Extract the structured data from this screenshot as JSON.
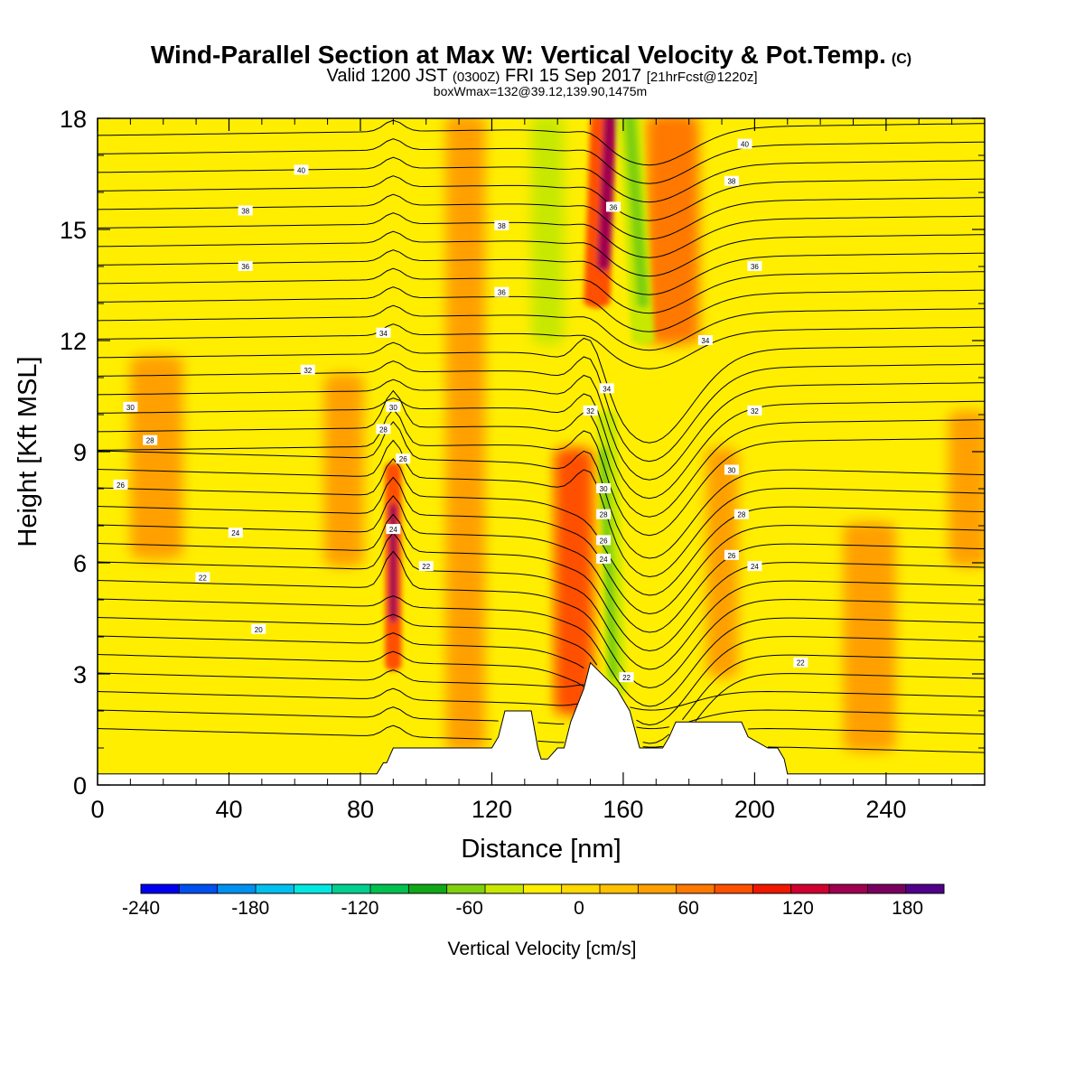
{
  "title": {
    "main": "Wind-Parallel Section at Max W: Vertical Velocity & Pot.Temp.",
    "main_badge": "(C)",
    "valid_prefix": "Valid 1200 JST",
    "valid_zulu": "(0300Z)",
    "valid_date": "FRI 15 Sep 2017",
    "valid_fcst": "[21hrFcst@1220z]",
    "boxinfo": "boxWmax=132@39.12,139.90,1475m"
  },
  "chart_data": {
    "type": "heatmap",
    "xlabel": "Distance [nm]",
    "ylabel": "Height [Kft MSL]",
    "xlim": [
      0,
      270
    ],
    "ylim": [
      0,
      18
    ],
    "xticks": [
      0,
      40,
      80,
      120,
      160,
      200,
      240
    ],
    "yticks": [
      0,
      3,
      6,
      9,
      12,
      15,
      18
    ],
    "colorbar": {
      "title": "Vertical Velocity [cm/s]",
      "min": -240,
      "max": 200,
      "step": 20,
      "ticks": [
        -240,
        -180,
        -120,
        -60,
        0,
        60,
        120,
        180
      ],
      "colors": [
        "#0000f0",
        "#0050f0",
        "#0090f0",
        "#00c0f0",
        "#00e8e0",
        "#00d090",
        "#00c050",
        "#10a818",
        "#80d010",
        "#c8e800",
        "#ffee00",
        "#ffd800",
        "#ffc000",
        "#ffa000",
        "#ff7800",
        "#ff5000",
        "#f01800",
        "#d00030",
        "#a00050",
        "#7a0060",
        "#50008a"
      ]
    },
    "vertical_velocity_features": [
      {
        "type": "updraft",
        "x_nm": 90,
        "height_kft": [
          3,
          8.5
        ],
        "peak_cm_s": 120
      },
      {
        "type": "updraft",
        "x_nm": 154,
        "height_kft": [
          13,
          18
        ],
        "peak_cm_s": 140
      },
      {
        "type": "updraft",
        "x_nm": 145,
        "height_kft": [
          2,
          8
        ],
        "peak_cm_s": 60
      },
      {
        "type": "downdraft",
        "x_nm": 157,
        "height_kft": [
          2.5,
          10
        ],
        "peak_cm_s": -80
      },
      {
        "type": "downdraft",
        "x_nm": 166,
        "height_kft": [
          12,
          18
        ],
        "peak_cm_s": -80
      },
      {
        "type": "downdraft",
        "x_nm": 135,
        "height_kft": [
          12,
          18
        ],
        "peak_cm_s": -50
      }
    ],
    "terrain_profile": {
      "x_nm": [
        0,
        85,
        87,
        88,
        90,
        120,
        122,
        124,
        132,
        134,
        135,
        137,
        140,
        142,
        144,
        148,
        150,
        158,
        162,
        165,
        172,
        174,
        176,
        196,
        198,
        204,
        206,
        207,
        209,
        210,
        212,
        270
      ],
      "height_kft": [
        0.3,
        0.3,
        0.6,
        0.6,
        1.0,
        1.0,
        1.3,
        2.0,
        2.0,
        1.0,
        0.7,
        0.7,
        1.0,
        1.0,
        1.7,
        2.6,
        3.3,
        2.6,
        2.0,
        1.0,
        1.0,
        1.3,
        1.7,
        1.7,
        1.3,
        1.0,
        1.0,
        1.0,
        0.7,
        0.3,
        0.3,
        0.3
      ]
    },
    "potential_temperature_contours_c": [
      20,
      22,
      24,
      26,
      28,
      30,
      32,
      34,
      36,
      38,
      40
    ],
    "contour_labels": [
      {
        "value": "40",
        "x": 62,
        "y": 16.6
      },
      {
        "value": "38",
        "x": 45,
        "y": 15.5
      },
      {
        "value": "36",
        "x": 45,
        "y": 14.0
      },
      {
        "value": "34",
        "x": 87,
        "y": 12.2
      },
      {
        "value": "32",
        "x": 64,
        "y": 11.2
      },
      {
        "value": "30",
        "x": 10,
        "y": 10.2
      },
      {
        "value": "28",
        "x": 16,
        "y": 9.3
      },
      {
        "value": "26",
        "x": 7,
        "y": 8.1
      },
      {
        "value": "24",
        "x": 42,
        "y": 6.8
      },
      {
        "value": "22",
        "x": 32,
        "y": 5.6
      },
      {
        "value": "20",
        "x": 49,
        "y": 4.2
      },
      {
        "value": "30",
        "x": 90,
        "y": 10.2
      },
      {
        "value": "28",
        "x": 87,
        "y": 9.6
      },
      {
        "value": "26",
        "x": 93,
        "y": 8.8
      },
      {
        "value": "24",
        "x": 90,
        "y": 6.9
      },
      {
        "value": "22",
        "x": 100,
        "y": 5.9
      },
      {
        "value": "38",
        "x": 123,
        "y": 15.1
      },
      {
        "value": "36",
        "x": 123,
        "y": 13.3
      },
      {
        "value": "36",
        "x": 157,
        "y": 15.6
      },
      {
        "value": "34",
        "x": 155,
        "y": 10.7
      },
      {
        "value": "32",
        "x": 150,
        "y": 10.1
      },
      {
        "value": "30",
        "x": 154,
        "y": 8.0
      },
      {
        "value": "28",
        "x": 154,
        "y": 7.3
      },
      {
        "value": "26",
        "x": 154,
        "y": 6.6
      },
      {
        "value": "24",
        "x": 154,
        "y": 6.1
      },
      {
        "value": "22",
        "x": 161,
        "y": 2.9
      },
      {
        "value": "40",
        "x": 197,
        "y": 17.3
      },
      {
        "value": "38",
        "x": 193,
        "y": 16.3
      },
      {
        "value": "36",
        "x": 200,
        "y": 14.0
      },
      {
        "value": "34",
        "x": 185,
        "y": 12.0
      },
      {
        "value": "32",
        "x": 200,
        "y": 10.1
      },
      {
        "value": "30",
        "x": 193,
        "y": 8.5
      },
      {
        "value": "28",
        "x": 196,
        "y": 7.3
      },
      {
        "value": "26",
        "x": 193,
        "y": 6.2
      },
      {
        "value": "24",
        "x": 200,
        "y": 5.9
      },
      {
        "value": "22",
        "x": 214,
        "y": 3.3
      }
    ]
  }
}
